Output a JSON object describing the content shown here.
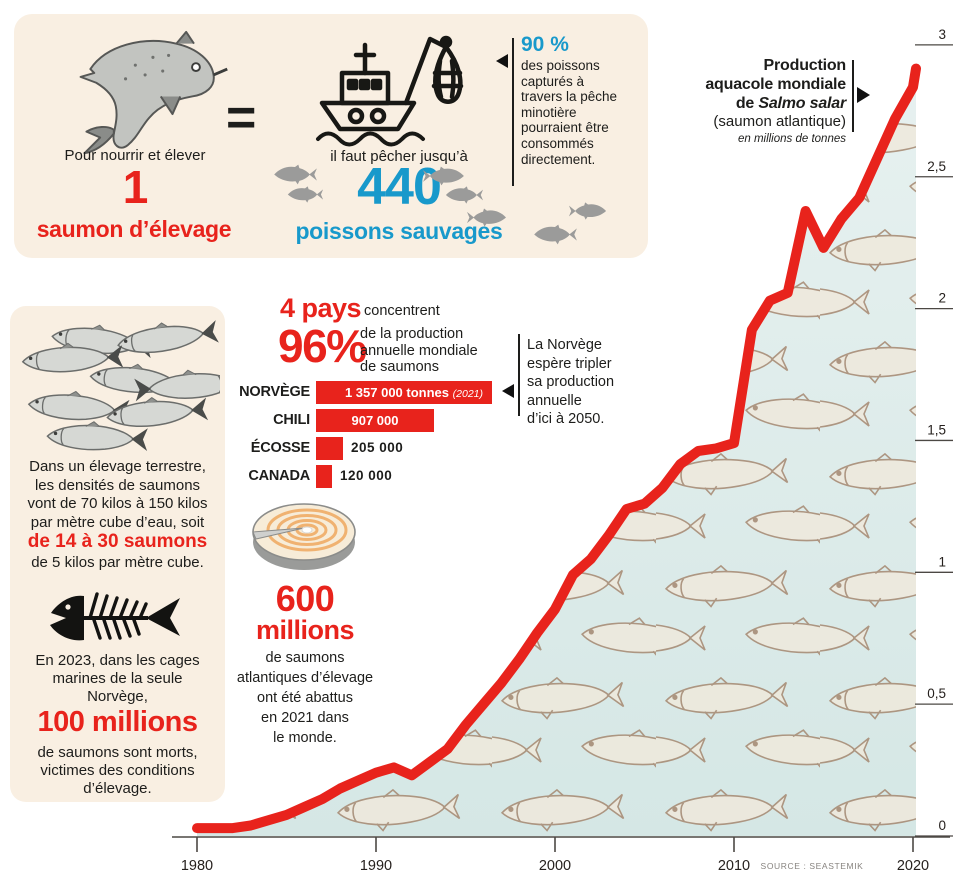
{
  "colors": {
    "red": "#e8231c",
    "blue": "#1899cb",
    "cream": "#f9efe2",
    "chart_fill": "#dcebe9",
    "ink": "#1d1d1b",
    "grey_fish": "#9b9b9a"
  },
  "top_box": {
    "equals": "=",
    "left": {
      "caption": "Pour nourrir et élever",
      "number": "1",
      "label": "saumon d’élevage"
    },
    "right": {
      "caption": "il faut pêcher jusqu’à",
      "number": "440",
      "label": "poissons sauvages"
    },
    "callout90": {
      "number": "90 %",
      "lines": [
        "des poissons",
        "capturés à",
        "travers la pêche",
        "minotière",
        "pourraient être",
        "consommés",
        "directement."
      ]
    }
  },
  "left_box": {
    "density": {
      "lines_before": [
        "Dans un élevage terrestre,",
        "les densités de saumons",
        "vont de 70 kilos à 150 kilos",
        "par mètre cube d’eau, soit"
      ],
      "highlight": "de 14 à 30 saumons",
      "line_after": "de 5 kilos par mètre cube."
    },
    "deaths": {
      "lines_before": [
        "En 2023, dans les cages",
        "marines de la seule",
        "Norvège,"
      ],
      "highlight": "100 millions",
      "lines_after": [
        "de saumons sont morts,",
        "victimes des conditions",
        "d’élevage."
      ]
    }
  },
  "four_countries": {
    "title_number": "4 pays",
    "title_rest": "concentrent",
    "pct": "96%",
    "pct_lines": [
      "de la production",
      "annuelle mondiale",
      "de saumons"
    ],
    "bars": [
      {
        "country": "NORVÈGE",
        "label": "1 357 000 tonnes",
        "year_note": "(2021)",
        "value": 1357000
      },
      {
        "country": "CHILI",
        "label": "907 000",
        "value": 907000
      },
      {
        "country": "ÉCOSSE",
        "label": "205 000",
        "value": 205000
      },
      {
        "country": "CANADA",
        "label": "120 000",
        "value": 120000
      }
    ],
    "norway_note_lines": [
      "La Norvège",
      "espère tripler",
      "sa production",
      "annuelle",
      "d’ici à 2050."
    ]
  },
  "slaughter": {
    "number": "600",
    "unit": "millions",
    "lines": [
      "de saumons",
      "atlantiques d’élevage",
      "ont été abattus",
      "en 2021 dans",
      "le monde."
    ]
  },
  "chart": {
    "title_lines": [
      "Production",
      "aquacole mondiale"
    ],
    "title_species_prefix": "de ",
    "title_species": "Salmo salar",
    "subtitle": "(saumon atlantique)",
    "unit_note": "en millions de tonnes",
    "x_ticks": [
      "1980",
      "1990",
      "2000",
      "2010",
      "2020"
    ],
    "y_ticks": [
      "3",
      "2,5",
      "2",
      "1,5",
      "1",
      "0,5",
      "0"
    ],
    "source": "SOURCE : SEASTEMIK"
  },
  "chart_data": [
    {
      "type": "line",
      "title": "Production aquacole mondiale de Salmo salar (saumon atlantique)",
      "ylabel": "millions de tonnes",
      "xlim": [
        1980,
        2021
      ],
      "ylim": [
        0,
        3
      ],
      "grid": false,
      "legend_position": "none",
      "points": [
        [
          1980,
          0.03
        ],
        [
          1981,
          0.03
        ],
        [
          1982,
          0.03
        ],
        [
          1983,
          0.04
        ],
        [
          1984,
          0.06
        ],
        [
          1985,
          0.08
        ],
        [
          1986,
          0.11
        ],
        [
          1987,
          0.14
        ],
        [
          1988,
          0.18
        ],
        [
          1989,
          0.21
        ],
        [
          1990,
          0.24
        ],
        [
          1991,
          0.26
        ],
        [
          1992,
          0.23
        ],
        [
          1993,
          0.28
        ],
        [
          1994,
          0.33
        ],
        [
          1995,
          0.42
        ],
        [
          1996,
          0.5
        ],
        [
          1997,
          0.58
        ],
        [
          1998,
          0.67
        ],
        [
          1999,
          0.77
        ],
        [
          2000,
          0.86
        ],
        [
          2001,
          0.99
        ],
        [
          2002,
          1.05
        ],
        [
          2003,
          1.14
        ],
        [
          2004,
          1.24
        ],
        [
          2005,
          1.26
        ],
        [
          2006,
          1.32
        ],
        [
          2007,
          1.41
        ],
        [
          2008,
          1.46
        ],
        [
          2009,
          1.47
        ],
        [
          2010,
          1.49
        ],
        [
          2011,
          1.92
        ],
        [
          2012,
          2.03
        ],
        [
          2013,
          2.06
        ],
        [
          2014,
          2.37
        ],
        [
          2015,
          2.23
        ],
        [
          2016,
          2.34
        ],
        [
          2017,
          2.42
        ],
        [
          2018,
          2.57
        ],
        [
          2019,
          2.72
        ],
        [
          2020,
          2.84
        ],
        [
          2021,
          2.91
        ]
      ]
    },
    {
      "type": "bar",
      "title": "4 pays concentrent 96% de la production annuelle mondiale de saumons",
      "unit": "tonnes",
      "year": 2021,
      "categories": [
        "NORVÈGE",
        "CHILI",
        "ÉCOSSE",
        "CANADA"
      ],
      "values": [
        1357000,
        907000,
        205000,
        120000
      ]
    }
  ]
}
